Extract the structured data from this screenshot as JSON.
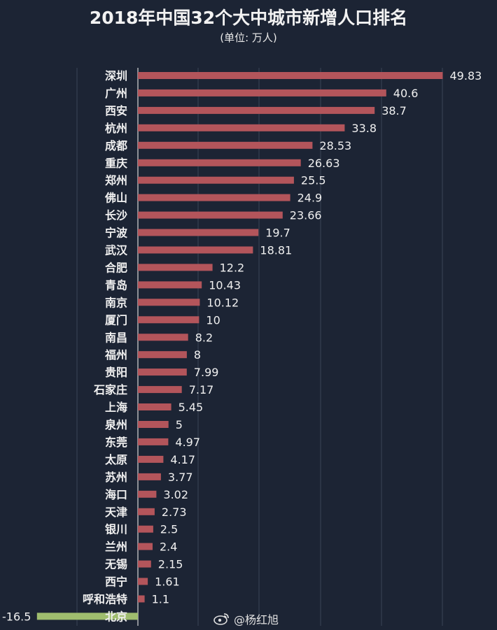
{
  "title": "2018年中国32个大中城市新增人口排名",
  "subtitle": "(单位: 万人)",
  "watermark": "@杨红旭",
  "watermark_icon": "weibo-icon",
  "colors": {
    "background": "#1c2434",
    "bar_positive": "#b3555b",
    "bar_negative": "#9fbd6e",
    "text": "#f0f0f0",
    "grid": "#3a4456"
  },
  "chart_data": {
    "type": "bar",
    "orientation": "horizontal",
    "title": "2018年中国32个大中城市新增人口排名",
    "subtitle": "(单位: 万人)",
    "xlabel": "",
    "ylabel": "",
    "xlim": [
      -16.5,
      50
    ],
    "grid": true,
    "legend": "none",
    "categories": [
      "深圳",
      "广州",
      "西安",
      "杭州",
      "成都",
      "重庆",
      "郑州",
      "佛山",
      "长沙",
      "宁波",
      "武汉",
      "合肥",
      "青岛",
      "南京",
      "厦门",
      "南昌",
      "福州",
      "贵阳",
      "石家庄",
      "上海",
      "泉州",
      "东莞",
      "太原",
      "苏州",
      "海口",
      "天津",
      "银川",
      "兰州",
      "无锡",
      "西宁",
      "呼和浩特",
      "北京"
    ],
    "values": [
      49.83,
      40.6,
      38.7,
      33.8,
      28.53,
      26.63,
      25.5,
      24.9,
      23.66,
      19.7,
      18.81,
      12.2,
      10.43,
      10.12,
      10,
      8.2,
      8,
      7.99,
      7.17,
      5.45,
      5,
      4.97,
      4.17,
      3.77,
      3.02,
      2.73,
      2.5,
      2.4,
      2.15,
      1.61,
      1.1,
      -16.5
    ],
    "labels": [
      "49.83",
      "40.6",
      "38.7",
      "33.8",
      "28.53",
      "26.63",
      "25.5",
      "24.9",
      "23.66",
      "19.7",
      "18.81",
      "12.2",
      "10.43",
      "10.12",
      "10",
      "8.2",
      "8",
      "7.99",
      "7.17",
      "5.45",
      "5",
      "4.97",
      "4.17",
      "3.77",
      "3.02",
      "2.73",
      "2.5",
      "2.4",
      "2.15",
      "1.61",
      "1.1",
      "-16.5"
    ]
  }
}
